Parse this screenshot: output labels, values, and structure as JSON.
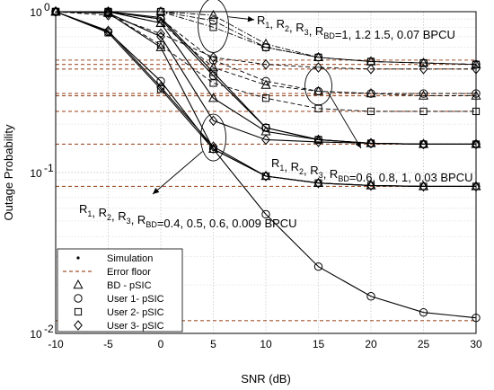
{
  "chart_data": {
    "type": "line",
    "xlabel": "SNR (dB)",
    "ylabel": "Outage Probability",
    "x": [
      -10,
      -5,
      0,
      5,
      10,
      15,
      20,
      25,
      30
    ],
    "xlim": [
      -10,
      30
    ],
    "ylim": [
      0.01,
      1
    ],
    "yscale": "log",
    "grid": true,
    "x_ticks": [
      "-10",
      "-5",
      "0",
      "5",
      "10",
      "15",
      "20",
      "25",
      "30"
    ],
    "y_ticks": [
      {
        "base": "10",
        "exp": "-2",
        "value": 0.01
      },
      {
        "base": "10",
        "exp": "-1",
        "value": 0.1
      },
      {
        "base": "10",
        "exp": "0",
        "value": 1
      }
    ],
    "legend_position": "bottom-left",
    "legend": [
      {
        "label": "Simulation",
        "marker": "dot",
        "line": "none"
      },
      {
        "label": "Error floor",
        "marker": "none",
        "line": "dashed",
        "color": "#a0522d"
      },
      {
        "label": "BD - pSIC",
        "marker": "triangle",
        "line": "solid"
      },
      {
        "label": "User 1- pSIC",
        "marker": "circle",
        "line": "solid"
      },
      {
        "label": "User 2- pSIC",
        "marker": "square",
        "line": "solid"
      },
      {
        "label": "User 3- pSIC",
        "marker": "diamond",
        "line": "solid"
      }
    ],
    "annotations": [
      {
        "parts": [
          [
            "R",
            "1"
          ],
          [
            ", R",
            "2"
          ],
          [
            ", R",
            "3"
          ],
          [
            ", R",
            "BD"
          ]
        ],
        "tail": "=1, 1.2 1.5, 0.07 BPCU"
      },
      {
        "parts": [
          [
            "R",
            "1"
          ],
          [
            ", R",
            "2"
          ],
          [
            ", R",
            "3"
          ],
          [
            ", R",
            "BD"
          ]
        ],
        "tail": "=0.6, 0.8, 1, 0.03 BPCU"
      },
      {
        "parts": [
          [
            "R",
            "1"
          ],
          [
            ", R",
            "2"
          ],
          [
            ", R",
            "3"
          ],
          [
            ", R",
            "BD"
          ]
        ],
        "tail": "=0.4, 0.5, 0.6, 0.009 BPCU"
      }
    ],
    "error_floors": [
      0.012,
      0.082,
      0.15,
      0.24,
      0.3,
      0.31,
      0.44,
      0.47,
      0.5
    ],
    "series": [
      {
        "group": "0.4, 0.5, 0.6, 0.009",
        "user": "BD",
        "marker": "triangle",
        "style": "solid",
        "values": [
          1,
          0.98,
          0.6,
          0.14,
          0.095,
          0.086,
          0.083,
          0.082,
          0.082
        ]
      },
      {
        "group": "0.4, 0.5, 0.6, 0.009",
        "user": "User 1",
        "marker": "circle",
        "style": "solid",
        "values": [
          1,
          0.75,
          0.37,
          0.14,
          0.055,
          0.026,
          0.017,
          0.0135,
          0.0125
        ]
      },
      {
        "group": "0.4, 0.5, 0.6, 0.009",
        "user": "User 2",
        "marker": "square",
        "style": "solid",
        "values": [
          1,
          0.74,
          0.33,
          0.14,
          0.095,
          0.086,
          0.083,
          0.082,
          0.082
        ]
      },
      {
        "group": "0.4, 0.5, 0.6, 0.009",
        "user": "User 3",
        "marker": "diamond",
        "style": "solid",
        "values": [
          1,
          0.76,
          0.34,
          0.145,
          0.095,
          0.086,
          0.083,
          0.082,
          0.082
        ]
      },
      {
        "group": "0.6, 0.8, 1, 0.03",
        "user": "BD",
        "marker": "triangle",
        "style": "solid",
        "values": [
          1,
          1,
          0.85,
          0.29,
          0.18,
          0.16,
          0.152,
          0.15,
          0.15
        ]
      },
      {
        "group": "0.6, 0.8, 1, 0.03",
        "user": "User 1",
        "marker": "circle",
        "style": "solid",
        "values": [
          1,
          1,
          0.9,
          0.4,
          0.19,
          0.16,
          0.152,
          0.15,
          0.15
        ]
      },
      {
        "group": "0.6, 0.8, 1, 0.03",
        "user": "User 2",
        "marker": "square",
        "style": "solid",
        "values": [
          1,
          1,
          0.92,
          0.42,
          0.19,
          0.16,
          0.152,
          0.15,
          0.15
        ]
      },
      {
        "group": "0.6, 0.8, 1, 0.03",
        "user": "User 3",
        "marker": "diamond",
        "style": "solid",
        "values": [
          1,
          0.98,
          0.7,
          0.21,
          0.16,
          0.155,
          0.152,
          0.15,
          0.15
        ]
      },
      {
        "group": "1, 1.2 1.5, 0.07",
        "user": "BD",
        "marker": "triangle",
        "style": "dashdot",
        "values": [
          1,
          1,
          1,
          0.95,
          0.63,
          0.52,
          0.49,
          0.48,
          0.47
        ]
      },
      {
        "group": "1, 1.2 1.5, 0.07",
        "user": "User 1",
        "marker": "circle",
        "style": "dashdot",
        "values": [
          1,
          1,
          1,
          0.88,
          0.6,
          0.52,
          0.49,
          0.48,
          0.47
        ]
      },
      {
        "group": "1, 1.2 1.5, 0.07",
        "user": "User 2",
        "marker": "square",
        "style": "dashdot",
        "values": [
          1,
          1,
          1,
          0.8,
          0.6,
          0.52,
          0.49,
          0.48,
          0.47
        ]
      },
      {
        "group": "1, 1.2 1.5, 0.07",
        "user": "User 3",
        "marker": "diamond",
        "style": "dashed",
        "values": [
          1,
          0.95,
          0.73,
          0.52,
          0.47,
          0.45,
          0.44,
          0.44,
          0.44
        ]
      },
      {
        "group": "1, 1.2 1.5, 0.07",
        "user": "User 1b",
        "marker": "circle",
        "style": "dashed",
        "values": [
          1,
          1,
          0.9,
          0.5,
          0.37,
          0.32,
          0.31,
          0.31,
          0.31
        ]
      },
      {
        "group": "1, 1.2 1.5, 0.07",
        "user": "User 2b",
        "marker": "square",
        "style": "dashed",
        "values": [
          1,
          0.98,
          0.62,
          0.36,
          0.29,
          0.25,
          0.24,
          0.24,
          0.24
        ]
      },
      {
        "group": "1, 1.2 1.5, 0.07",
        "user": "BDb",
        "marker": "triangle",
        "style": "dashed",
        "values": [
          1,
          1,
          0.85,
          0.45,
          0.35,
          0.32,
          0.31,
          0.3,
          0.3
        ]
      }
    ]
  }
}
